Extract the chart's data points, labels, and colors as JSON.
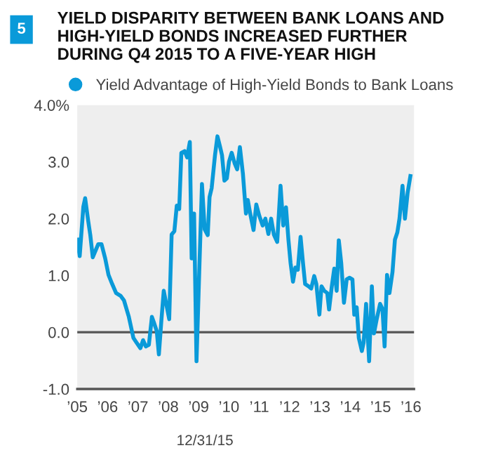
{
  "chart_data": {
    "type": "line",
    "title": "YIELD DISPARITY BETWEEN BANK LOANS AND HIGH-YIELD BONDS INCREASED FURTHER DURING Q4 2015 TO A FIVE-YEAR HIGH",
    "annotations": [
      "5",
      "12/31/15"
    ],
    "series": [
      {
        "name": "Yield Advantage of High-Yield Bonds to Bank Loans",
        "color": "#0a9ad9",
        "x": [
          2005.0,
          2005.08,
          2005.2,
          2005.26,
          2005.36,
          2005.43,
          2005.51,
          2005.69,
          2005.8,
          2005.92,
          2006.03,
          2006.15,
          2006.28,
          2006.43,
          2006.54,
          2006.7,
          2006.85,
          2006.95,
          2007.08,
          2007.17,
          2007.26,
          2007.36,
          2007.46,
          2007.54,
          2007.62,
          2007.69,
          2007.77,
          2007.85,
          2007.94,
          2008.03,
          2008.11,
          2008.2,
          2008.28,
          2008.36,
          2008.43,
          2008.54,
          2008.62,
          2008.71,
          2008.77,
          2008.85,
          2008.93,
          2009.02,
          2009.11,
          2009.2,
          2009.3,
          2009.36,
          2009.43,
          2009.54,
          2009.62,
          2009.7,
          2009.77,
          2009.85,
          2009.93,
          2010.0,
          2010.09,
          2010.19,
          2010.27,
          2010.36,
          2010.46,
          2010.56,
          2010.62,
          2010.7,
          2010.81,
          2010.9,
          2011.0,
          2011.11,
          2011.2,
          2011.3,
          2011.39,
          2011.48,
          2011.59,
          2011.7,
          2011.79,
          2011.88,
          2011.96,
          2012.03,
          2012.11,
          2012.19,
          2012.27,
          2012.36,
          2012.44,
          2012.51,
          2012.62,
          2012.71,
          2012.81,
          2012.88,
          2012.98,
          2013.05,
          2013.14,
          2013.24,
          2013.3,
          2013.39,
          2013.47,
          2013.55,
          2013.62,
          2013.7,
          2013.79,
          2013.88,
          2013.97,
          2014.07,
          2014.13,
          2014.21,
          2014.28,
          2014.38,
          2014.44,
          2014.52,
          2014.62,
          2014.71,
          2014.78,
          2014.87,
          2014.98,
          2015.06,
          2015.13,
          2015.21,
          2015.29,
          2015.39,
          2015.47,
          2015.55,
          2015.62,
          2015.72,
          2015.8,
          2015.89,
          2015.98
        ],
        "values": [
          1.63,
          1.34,
          2.21,
          2.36,
          1.96,
          1.71,
          1.32,
          1.55,
          1.55,
          1.3,
          1.01,
          0.85,
          0.69,
          0.64,
          0.56,
          0.27,
          -0.1,
          -0.18,
          -0.28,
          -0.14,
          -0.25,
          -0.22,
          0.27,
          0.15,
          0.02,
          -0.39,
          0.19,
          0.73,
          0.48,
          0.23,
          1.72,
          1.78,
          2.23,
          2.17,
          3.16,
          3.19,
          3.08,
          3.35,
          1.3,
          2.09,
          -0.51,
          1.06,
          2.61,
          1.81,
          1.71,
          2.38,
          2.54,
          3.12,
          3.45,
          3.28,
          3.12,
          2.67,
          2.71,
          3.0,
          3.16,
          2.97,
          2.87,
          3.26,
          2.79,
          2.09,
          2.33,
          2.09,
          1.8,
          2.25,
          2.05,
          1.88,
          2.0,
          1.73,
          2.0,
          1.72,
          1.59,
          2.58,
          1.88,
          2.2,
          1.63,
          1.22,
          0.89,
          1.14,
          1.1,
          1.68,
          1.22,
          0.85,
          0.81,
          0.77,
          0.99,
          0.85,
          0.31,
          0.81,
          0.73,
          0.69,
          0.4,
          0.81,
          1.12,
          0.73,
          1.62,
          1.22,
          0.52,
          0.93,
          0.96,
          0.93,
          0.31,
          0.44,
          -0.1,
          -0.33,
          -0.18,
          0.5,
          -0.51,
          0.81,
          -0.02,
          0.23,
          0.5,
          0.41,
          -0.25,
          1.01,
          0.69,
          1.06,
          1.63,
          1.76,
          2.0,
          2.58,
          2.0,
          2.46,
          2.75
        ]
      }
    ],
    "xlim": [
      2005,
      2016.1
    ],
    "xticks": [
      {
        "value": 2005,
        "label": "’05"
      },
      {
        "value": 2006,
        "label": "’06"
      },
      {
        "value": 2007,
        "label": "’07"
      },
      {
        "value": 2008,
        "label": "’08"
      },
      {
        "value": 2009,
        "label": "’09"
      },
      {
        "value": 2010,
        "label": "’10"
      },
      {
        "value": 2011,
        "label": "’11"
      },
      {
        "value": 2012,
        "label": "’12"
      },
      {
        "value": 2013,
        "label": "’13"
      },
      {
        "value": 2014,
        "label": "’14"
      },
      {
        "value": 2015,
        "label": "’15"
      },
      {
        "value": 2016,
        "label": "’16"
      }
    ],
    "ylim": [
      -1,
      4
    ],
    "yticks": [
      {
        "value": -1,
        "label": "-1.0"
      },
      {
        "value": 0,
        "label": "0.0"
      },
      {
        "value": 1,
        "label": "1.0"
      },
      {
        "value": 2,
        "label": "2.0"
      },
      {
        "value": 3,
        "label": "3.0"
      },
      {
        "value": 4,
        "label": "4.0%"
      }
    ],
    "ref_lines": [
      {
        "axis": "y",
        "value": 0,
        "color": "#555555"
      }
    ],
    "grid": false,
    "legend": "top left",
    "marker": "none",
    "line_style": "solid"
  }
}
